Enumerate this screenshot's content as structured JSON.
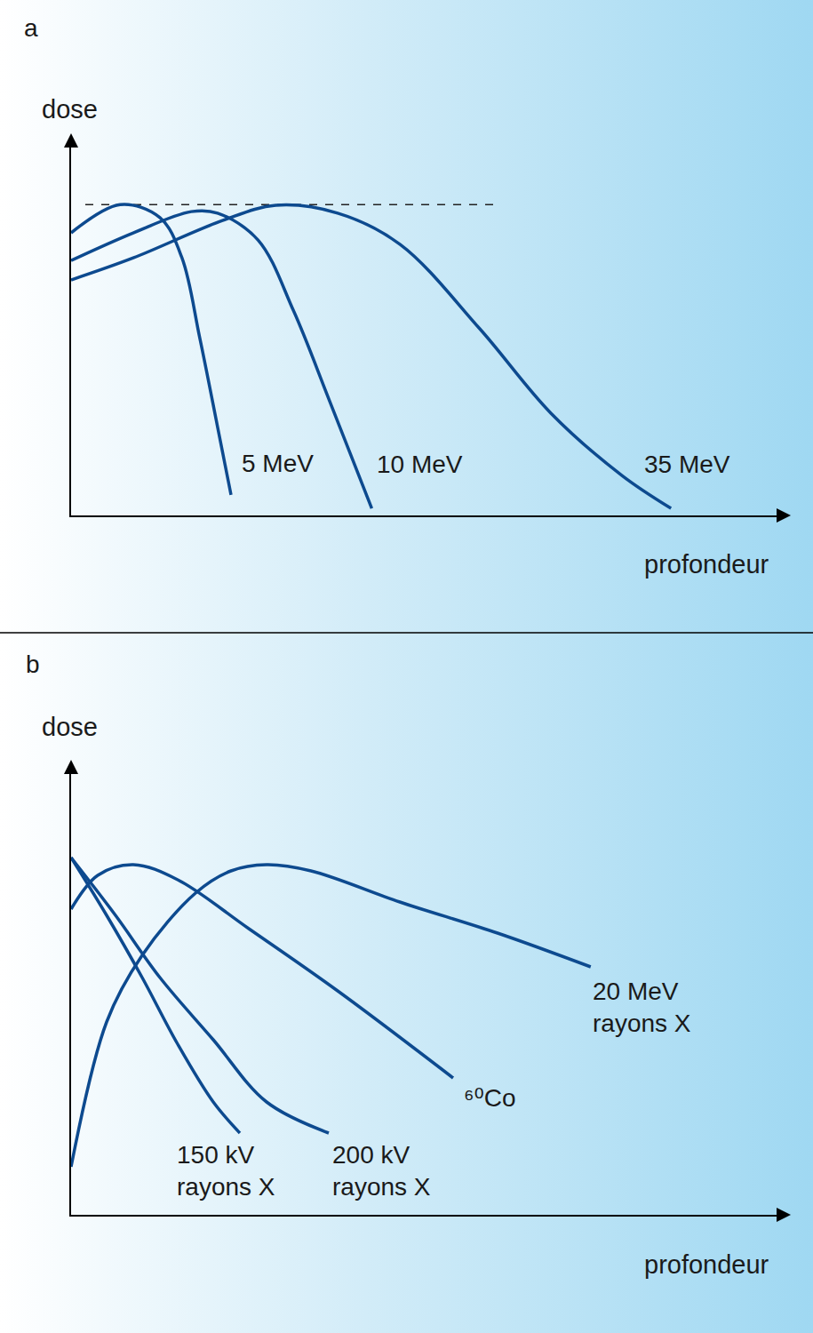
{
  "chart_data": [
    {
      "type": "line",
      "panel": "a",
      "x_label": "profondeur",
      "y_label": "dose",
      "xlim": [
        0,
        10
      ],
      "ylim": [
        0,
        10
      ],
      "xticks": [],
      "yticks": [],
      "tick_labels": false,
      "grid": false,
      "reference_line": {
        "x": [
          0.2,
          6.0
        ],
        "y": 8.33,
        "line_style": "dashed",
        "color": "#222222"
      },
      "series": [
        {
          "name": "5 MeV",
          "color": "#0d4a8f",
          "x": [
            0,
            0.69,
            1.25,
            1.56,
            1.81,
            2.06,
            2.25
          ],
          "values": [
            7.57,
            8.33,
            7.98,
            6.9,
            4.76,
            2.38,
            0.55
          ]
        },
        {
          "name": "10 MeV",
          "color": "#0d4a8f",
          "x": [
            0,
            0.875,
            1.69,
            2.06,
            2.63,
            3.13,
            3.63,
            4.23
          ],
          "values": [
            6.83,
            7.57,
            8.14,
            8.1,
            7.38,
            5.48,
            3.1,
            0.19
          ]
        },
        {
          "name": "35 MeV",
          "color": "#0d4a8f",
          "x": [
            0,
            0.875,
            2.13,
            2.88,
            3.75,
            4.63,
            5.75,
            6.75,
            7.75,
            8.44
          ],
          "values": [
            6.31,
            6.9,
            7.9,
            8.31,
            8.1,
            7.26,
            5.0,
            2.74,
            1.07,
            0.19
          ]
        }
      ]
    },
    {
      "type": "line",
      "panel": "b",
      "x_label": "profondeur",
      "y_label": "dose",
      "xlim": [
        0,
        10
      ],
      "ylim": [
        0,
        10
      ],
      "xticks": [],
      "yticks": [],
      "tick_labels": false,
      "grid": false,
      "series": [
        {
          "name": "150 kV\nrayons X",
          "color": "#0d4a8f",
          "x": [
            0,
            0.5,
            1,
            1.5,
            2,
            2.375
          ],
          "values": [
            8.04,
            6.74,
            5.34,
            3.84,
            2.54,
            1.84
          ]
        },
        {
          "name": "200 kV\nrayons X",
          "color": "#0d4a8f",
          "x": [
            0,
            0.625,
            1.25,
            2,
            2.75,
            3.625
          ],
          "values": [
            8.04,
            6.74,
            5.34,
            3.94,
            2.54,
            1.84
          ]
        },
        {
          "name": "⁶⁰Co",
          "color": "#0d4a8f",
          "x": [
            0,
            0.375,
            0.875,
            1.5,
            2.5,
            3.75,
            5.375
          ],
          "values": [
            6.88,
            7.64,
            7.88,
            7.54,
            6.44,
            5.04,
            3.08
          ]
        },
        {
          "name": "20 MeV\nrayons X",
          "color": "#0d4a8f",
          "x": [
            0,
            0.5,
            1,
            1.75,
            2.25,
            2.75,
            3.375,
            4.625,
            6,
            7.31
          ],
          "values": [
            1.08,
            4.34,
            5.84,
            7.24,
            7.74,
            7.88,
            7.74,
            7.04,
            6.34,
            5.58
          ]
        }
      ]
    }
  ]
}
